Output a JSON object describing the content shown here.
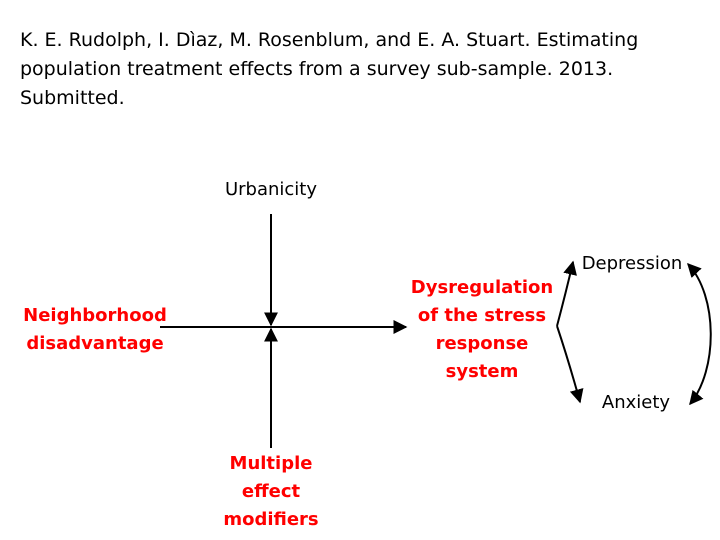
{
  "citation": {
    "lines": [
      "K. E. Rudolph, I. Dìaz, M. Rosenblum, and E. A. Stuart. Estimating",
      "population treatment effects from a survey sub-sample. 2013.",
      "Submitted."
    ]
  },
  "diagram": {
    "nodes": {
      "urbanicity": {
        "lines": [
          "Urbanicity"
        ]
      },
      "neighborhood": {
        "lines": [
          "Neighborhood",
          "disadvantage"
        ]
      },
      "dysregulation": {
        "lines": [
          "Dysregulation",
          "of the stress",
          "response",
          "system"
        ]
      },
      "modifiers": {
        "lines": [
          "Multiple",
          "effect",
          "modifiers"
        ]
      },
      "depression": {
        "lines": [
          "Depression"
        ]
      },
      "anxiety": {
        "lines": [
          "Anxiety"
        ]
      }
    },
    "colors": {
      "emphasis": "#ff0000",
      "text": "#000000",
      "edge": "#000000"
    },
    "edges": [
      {
        "from": "neighborhood",
        "to": "dysregulation"
      },
      {
        "from": "urbanicity",
        "to": "neighborhood-to-dysregulation-edge"
      },
      {
        "from": "modifiers",
        "to": "neighborhood-to-dysregulation-edge"
      },
      {
        "from": "dysregulation",
        "to": "depression"
      },
      {
        "from": "dysregulation",
        "to": "anxiety"
      },
      {
        "from": "depression",
        "to": "anxiety",
        "bidirectional": true
      }
    ]
  }
}
